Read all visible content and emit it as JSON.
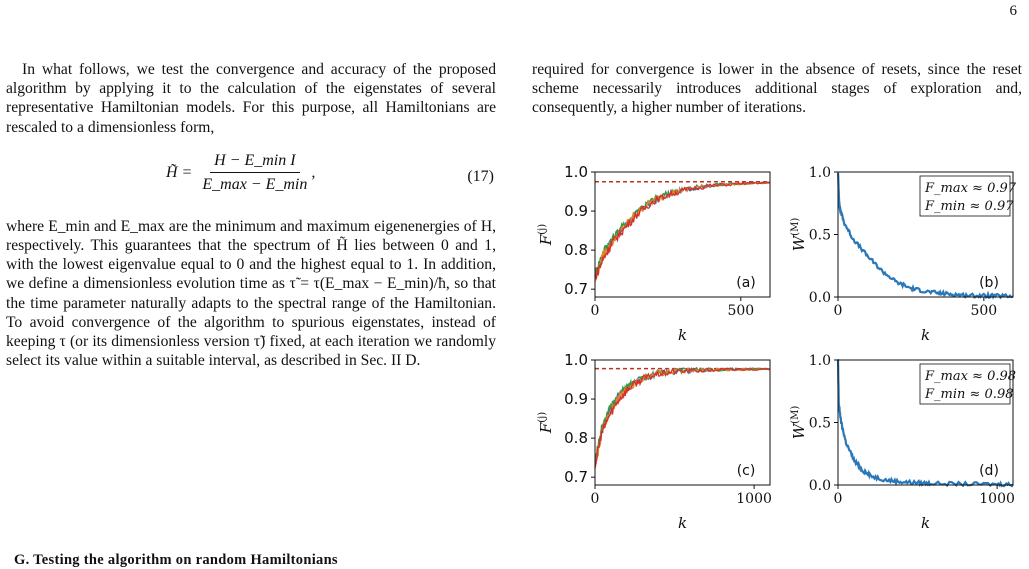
{
  "page_number": "6",
  "left_column": {
    "para1": "In what follows, we test the convergence and accuracy of the proposed algorithm by applying it to the calculation of the eigenstates of several representative Hamiltonian models. For this purpose, all Hamiltonians are rescaled to a dimensionless form,",
    "equation": {
      "lhs": "H̃ =",
      "numerator": "H − E_min I",
      "denominator": "E_max − E_min",
      "trailing": ",",
      "number": "(17)"
    },
    "para2": "where E_min and E_max are the minimum and maximum eigenenergies of H, respectively. This guarantees that the spectrum of H̃ lies between 0 and 1, with the lowest eigenvalue equal to 0 and the highest equal to 1. In addition, we define a dimensionless evolution time as τ̃ = τ(E_max − E_min)/ħ, so that the time parameter naturally adapts to the spectral range of the Hamiltonian. To avoid convergence of the algorithm to spurious eigenstates, instead of keeping τ (or its dimensionless version τ̃) fixed, at each iteration we randomly select its value within a suitable interval, as described in Sec. II D.",
    "section_heading": "G.    Testing the algorithm on random Hamiltonians"
  },
  "right_column": {
    "para": "required for convergence is lower in the absence of resets, since the reset scheme necessarily introduces additional stages of exploration and, consequently, a higher number of iterations."
  },
  "colors": {
    "blue": "#2b78b8",
    "orange": "#f08020",
    "green": "#3a9a3a",
    "red": "#d43030",
    "brown": "#8b4513",
    "dashed_red": "#c03020",
    "dashed_green": "#2a8a2a"
  },
  "chart_data": [
    {
      "id": "a",
      "type": "line",
      "panel_label": "(a)",
      "xlabel": "k",
      "ylabel": "F^(j)",
      "xlim": [
        0,
        600
      ],
      "ylim": [
        0.68,
        1.0
      ],
      "xticks": [
        0,
        500
      ],
      "yticks": [
        0.7,
        0.8,
        0.9,
        1.0
      ],
      "ytick_labels": [
        "0.7",
        "0.8",
        "0.9",
        "1.0"
      ],
      "xtick_labels": [
        "0",
        "500"
      ],
      "plateau": 0.975,
      "series": [
        {
          "color": "blue",
          "x": [
            0,
            30,
            60,
            100,
            150,
            200,
            260,
            320,
            400,
            500,
            600
          ],
          "y": [
            0.73,
            0.79,
            0.83,
            0.86,
            0.9,
            0.925,
            0.945,
            0.957,
            0.966,
            0.971,
            0.973
          ]
        },
        {
          "color": "green",
          "x": [
            0,
            30,
            60,
            100,
            150,
            200,
            260,
            320,
            400,
            500,
            600
          ],
          "y": [
            0.74,
            0.8,
            0.83,
            0.865,
            0.905,
            0.93,
            0.948,
            0.958,
            0.967,
            0.971,
            0.973
          ]
        },
        {
          "color": "orange",
          "x": [
            0,
            30,
            60,
            100,
            150,
            200,
            260,
            320,
            400,
            500,
            600
          ],
          "y": [
            0.72,
            0.79,
            0.82,
            0.86,
            0.9,
            0.927,
            0.946,
            0.957,
            0.966,
            0.97,
            0.972
          ]
        },
        {
          "color": "red",
          "x": [
            0,
            30,
            60,
            100,
            150,
            200,
            260,
            320,
            400,
            500,
            600
          ],
          "y": [
            0.73,
            0.78,
            0.82,
            0.855,
            0.895,
            0.925,
            0.944,
            0.956,
            0.965,
            0.97,
            0.972
          ]
        }
      ]
    },
    {
      "id": "b",
      "type": "line",
      "panel_label": "(b)",
      "xlabel": "k",
      "ylabel": "W^(M)",
      "xlim": [
        0,
        600
      ],
      "ylim": [
        0,
        1.0
      ],
      "xticks": [
        0,
        500
      ],
      "yticks": [
        0,
        0.5,
        1.0
      ],
      "ytick_labels": [
        "0.0",
        "0.5",
        "1.0"
      ],
      "xtick_labels": [
        "0",
        "500"
      ],
      "legend": [
        "F_max ≈ 0.97",
        "F_min ≈ 0.97"
      ],
      "series": [
        {
          "color": "blue",
          "x": [
            0,
            5,
            20,
            50,
            100,
            150,
            200,
            250,
            300,
            350,
            400,
            450,
            500,
            550,
            600
          ],
          "y": [
            1.0,
            0.72,
            0.6,
            0.47,
            0.33,
            0.21,
            0.12,
            0.07,
            0.045,
            0.03,
            0.02,
            0.012,
            0.01,
            0.008,
            0.006
          ]
        }
      ]
    },
    {
      "id": "c",
      "type": "line",
      "panel_label": "(c)",
      "xlabel": "k",
      "ylabel": "F^(j)",
      "xlim": [
        0,
        1100
      ],
      "ylim": [
        0.68,
        1.0
      ],
      "xticks": [
        0,
        1000
      ],
      "yticks": [
        0.7,
        0.8,
        0.9,
        1.0
      ],
      "ytick_labels": [
        "0.7",
        "0.8",
        "0.9",
        "1.0"
      ],
      "xtick_labels": [
        "0",
        "1000"
      ],
      "plateau": 0.978,
      "series": [
        {
          "color": "blue",
          "x": [
            0,
            40,
            80,
            150,
            220,
            300,
            400,
            500,
            650,
            800,
            950,
            1100
          ],
          "y": [
            0.73,
            0.82,
            0.86,
            0.91,
            0.935,
            0.955,
            0.966,
            0.971,
            0.974,
            0.976,
            0.977,
            0.977
          ]
        },
        {
          "color": "green",
          "x": [
            0,
            40,
            80,
            150,
            220,
            300,
            400,
            500,
            650,
            800,
            950,
            1100
          ],
          "y": [
            0.74,
            0.82,
            0.865,
            0.912,
            0.937,
            0.956,
            0.967,
            0.972,
            0.975,
            0.976,
            0.977,
            0.977
          ]
        },
        {
          "color": "orange",
          "x": [
            0,
            40,
            80,
            150,
            220,
            300,
            400,
            500,
            650,
            800,
            950,
            1100
          ],
          "y": [
            0.72,
            0.81,
            0.855,
            0.905,
            0.932,
            0.953,
            0.965,
            0.97,
            0.974,
            0.975,
            0.976,
            0.976
          ]
        },
        {
          "color": "red",
          "x": [
            0,
            40,
            80,
            150,
            220,
            300,
            400,
            500,
            650,
            800,
            950,
            1100
          ],
          "y": [
            0.73,
            0.81,
            0.85,
            0.9,
            0.93,
            0.952,
            0.964,
            0.97,
            0.973,
            0.975,
            0.976,
            0.976
          ]
        }
      ]
    },
    {
      "id": "d",
      "type": "line",
      "panel_label": "(d)",
      "xlabel": "k",
      "ylabel": "W^(M)",
      "xlim": [
        0,
        1100
      ],
      "ylim": [
        0,
        1.0
      ],
      "xticks": [
        0,
        1000
      ],
      "yticks": [
        0,
        0.5,
        1.0
      ],
      "ytick_labels": [
        "0.0",
        "0.5",
        "1.0"
      ],
      "xtick_labels": [
        "0",
        "1000"
      ],
      "legend": [
        "F_max ≈ 0.98",
        "F_min ≈ 0.98"
      ],
      "series": [
        {
          "color": "blue",
          "x": [
            0,
            5,
            20,
            50,
            100,
            150,
            200,
            300,
            400,
            500,
            600,
            800,
            1000,
            1100
          ],
          "y": [
            1.0,
            0.65,
            0.5,
            0.34,
            0.2,
            0.12,
            0.075,
            0.04,
            0.025,
            0.018,
            0.012,
            0.008,
            0.006,
            0.005
          ]
        }
      ]
    }
  ]
}
